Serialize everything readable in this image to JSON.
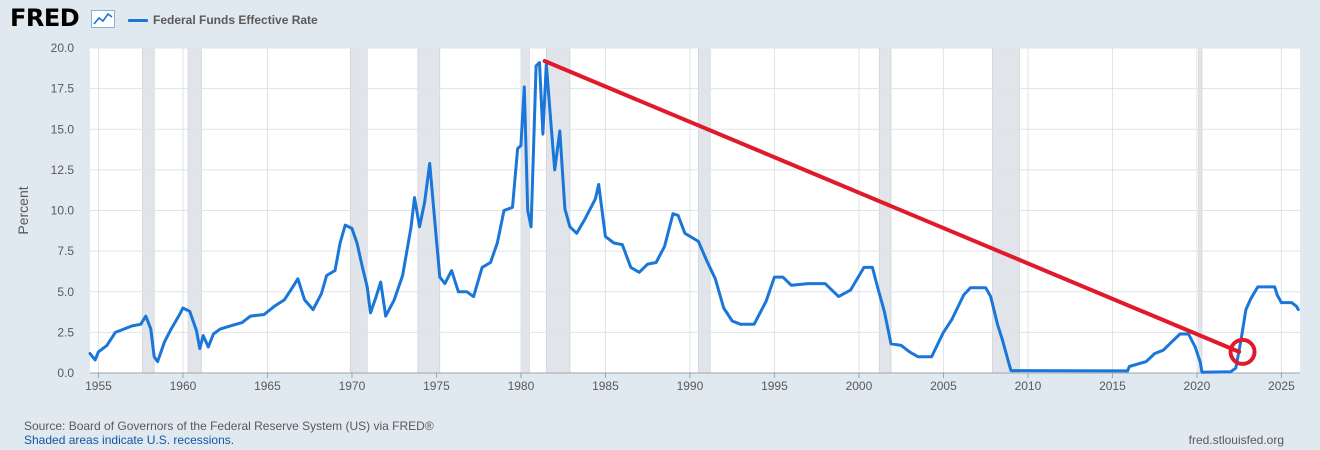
{
  "header": {
    "logo_text": "FRED",
    "logo_icon": "line-chart-icon",
    "legend_label": "Federal Funds Effective Rate"
  },
  "footer": {
    "source": "Source: Board of Governors of the Federal Reserve System (US) via FRED®",
    "recession_note": "Shaded areas indicate U.S. recessions.",
    "site": "fred.stlouisfed.org"
  },
  "colors": {
    "page_bg": "#e1e9f0",
    "plot_bg": "#ffffff",
    "series": "#1a76d8",
    "grid": "#dfe3e8",
    "recession": "#e1e5ea",
    "annotation": "#e01a2a",
    "axis_text": "#595959"
  },
  "chart_data": {
    "type": "line",
    "title": "",
    "xlabel": "",
    "ylabel": "Percent",
    "xlim": [
      1954.5,
      2026.1
    ],
    "ylim": [
      0,
      20
    ],
    "x_ticks": [
      1955,
      1960,
      1965,
      1970,
      1975,
      1980,
      1985,
      1990,
      1995,
      2000,
      2005,
      2010,
      2015,
      2020,
      2025
    ],
    "y_ticks": [
      "0.0",
      "2.5",
      "5.0",
      "7.5",
      "10.0",
      "12.5",
      "15.0",
      "17.5",
      "20.0"
    ],
    "grid": true,
    "legend_position": "top-left",
    "recessions": [
      [
        1957.6,
        1958.3
      ],
      [
        1960.3,
        1961.1
      ],
      [
        1969.9,
        1970.9
      ],
      [
        1973.9,
        1975.2
      ],
      [
        1980.0,
        1980.5
      ],
      [
        1981.5,
        1982.9
      ],
      [
        1990.5,
        1991.2
      ],
      [
        2001.2,
        2001.9
      ],
      [
        2007.9,
        2009.5
      ],
      [
        2020.1,
        2020.3
      ]
    ],
    "series": [
      {
        "name": "Federal Funds Effective Rate",
        "points": [
          [
            1954.5,
            1.2
          ],
          [
            1954.8,
            0.8
          ],
          [
            1955.0,
            1.3
          ],
          [
            1955.5,
            1.7
          ],
          [
            1956.0,
            2.5
          ],
          [
            1956.5,
            2.7
          ],
          [
            1957.0,
            2.9
          ],
          [
            1957.5,
            3.0
          ],
          [
            1957.8,
            3.5
          ],
          [
            1958.1,
            2.7
          ],
          [
            1958.3,
            1.0
          ],
          [
            1958.5,
            0.7
          ],
          [
            1958.9,
            1.9
          ],
          [
            1959.3,
            2.7
          ],
          [
            1959.8,
            3.6
          ],
          [
            1960.0,
            4.0
          ],
          [
            1960.4,
            3.8
          ],
          [
            1960.8,
            2.6
          ],
          [
            1961.0,
            1.5
          ],
          [
            1961.2,
            2.3
          ],
          [
            1961.5,
            1.6
          ],
          [
            1961.8,
            2.4
          ],
          [
            1962.2,
            2.7
          ],
          [
            1962.8,
            2.9
          ],
          [
            1963.5,
            3.1
          ],
          [
            1964.0,
            3.5
          ],
          [
            1964.8,
            3.6
          ],
          [
            1965.4,
            4.1
          ],
          [
            1966.0,
            4.5
          ],
          [
            1966.5,
            5.3
          ],
          [
            1966.8,
            5.8
          ],
          [
            1967.2,
            4.5
          ],
          [
            1967.7,
            3.9
          ],
          [
            1968.2,
            4.9
          ],
          [
            1968.5,
            6.0
          ],
          [
            1969.0,
            6.3
          ],
          [
            1969.3,
            8.0
          ],
          [
            1969.6,
            9.1
          ],
          [
            1970.0,
            8.9
          ],
          [
            1970.3,
            8.0
          ],
          [
            1970.6,
            6.6
          ],
          [
            1970.9,
            5.3
          ],
          [
            1971.1,
            3.7
          ],
          [
            1971.4,
            4.6
          ],
          [
            1971.7,
            5.6
          ],
          [
            1972.0,
            3.5
          ],
          [
            1972.5,
            4.5
          ],
          [
            1973.0,
            6.0
          ],
          [
            1973.5,
            9.0
          ],
          [
            1973.7,
            10.8
          ],
          [
            1974.0,
            9.0
          ],
          [
            1974.3,
            10.5
          ],
          [
            1974.6,
            12.9
          ],
          [
            1974.9,
            9.4
          ],
          [
            1975.2,
            5.9
          ],
          [
            1975.5,
            5.5
          ],
          [
            1975.9,
            6.3
          ],
          [
            1976.3,
            5.0
          ],
          [
            1976.8,
            5.0
          ],
          [
            1977.2,
            4.7
          ],
          [
            1977.7,
            6.5
          ],
          [
            1978.2,
            6.8
          ],
          [
            1978.6,
            8.0
          ],
          [
            1979.0,
            10.0
          ],
          [
            1979.5,
            10.2
          ],
          [
            1979.8,
            13.8
          ],
          [
            1980.0,
            14.0
          ],
          [
            1980.2,
            17.6
          ],
          [
            1980.4,
            10.0
          ],
          [
            1980.6,
            9.0
          ],
          [
            1980.9,
            18.9
          ],
          [
            1981.1,
            19.1
          ],
          [
            1981.3,
            14.7
          ],
          [
            1981.5,
            19.0
          ],
          [
            1981.8,
            15.0
          ],
          [
            1982.0,
            12.5
          ],
          [
            1982.3,
            14.9
          ],
          [
            1982.6,
            10.1
          ],
          [
            1982.9,
            9.0
          ],
          [
            1983.3,
            8.6
          ],
          [
            1983.8,
            9.5
          ],
          [
            1984.4,
            10.7
          ],
          [
            1984.6,
            11.6
          ],
          [
            1985.0,
            8.4
          ],
          [
            1985.5,
            8.0
          ],
          [
            1986.0,
            7.9
          ],
          [
            1986.5,
            6.5
          ],
          [
            1987.0,
            6.2
          ],
          [
            1987.5,
            6.7
          ],
          [
            1988.0,
            6.8
          ],
          [
            1988.5,
            7.8
          ],
          [
            1989.0,
            9.8
          ],
          [
            1989.3,
            9.7
          ],
          [
            1989.7,
            8.6
          ],
          [
            1990.5,
            8.1
          ],
          [
            1991.0,
            6.9
          ],
          [
            1991.5,
            5.8
          ],
          [
            1992.0,
            4.0
          ],
          [
            1992.5,
            3.2
          ],
          [
            1993.0,
            3.0
          ],
          [
            1993.8,
            3.0
          ],
          [
            1994.5,
            4.4
          ],
          [
            1995.0,
            5.9
          ],
          [
            1995.5,
            5.9
          ],
          [
            1996.0,
            5.4
          ],
          [
            1997.0,
            5.5
          ],
          [
            1998.0,
            5.5
          ],
          [
            1998.8,
            4.7
          ],
          [
            1999.5,
            5.1
          ],
          [
            2000.3,
            6.5
          ],
          [
            2000.8,
            6.5
          ],
          [
            2001.1,
            5.3
          ],
          [
            2001.5,
            3.8
          ],
          [
            2001.9,
            1.8
          ],
          [
            2002.5,
            1.7
          ],
          [
            2003.0,
            1.3
          ],
          [
            2003.5,
            1.0
          ],
          [
            2004.3,
            1.0
          ],
          [
            2005.0,
            2.5
          ],
          [
            2005.5,
            3.3
          ],
          [
            2006.2,
            4.8
          ],
          [
            2006.6,
            5.25
          ],
          [
            2007.5,
            5.25
          ],
          [
            2007.8,
            4.7
          ],
          [
            2008.2,
            3.0
          ],
          [
            2008.5,
            2.0
          ],
          [
            2008.9,
            0.5
          ],
          [
            2009.0,
            0.15
          ],
          [
            2012.0,
            0.14
          ],
          [
            2015.9,
            0.13
          ],
          [
            2016.0,
            0.4
          ],
          [
            2017.0,
            0.7
          ],
          [
            2017.5,
            1.2
          ],
          [
            2018.0,
            1.4
          ],
          [
            2018.5,
            1.9
          ],
          [
            2019.0,
            2.4
          ],
          [
            2019.5,
            2.4
          ],
          [
            2019.9,
            1.6
          ],
          [
            2020.2,
            0.65
          ],
          [
            2020.3,
            0.05
          ],
          [
            2022.0,
            0.08
          ],
          [
            2022.3,
            0.3
          ],
          [
            2022.6,
            2.0
          ],
          [
            2022.9,
            3.9
          ],
          [
            2023.2,
            4.6
          ],
          [
            2023.6,
            5.3
          ],
          [
            2024.6,
            5.3
          ],
          [
            2024.75,
            4.8
          ],
          [
            2025.0,
            4.33
          ],
          [
            2025.6,
            4.33
          ],
          [
            2025.9,
            4.1
          ],
          [
            2026.0,
            3.9
          ]
        ]
      }
    ],
    "annotations": [
      {
        "type": "line",
        "from": [
          1981.4,
          19.2
        ],
        "to": [
          2022.5,
          1.3
        ]
      },
      {
        "type": "circle",
        "center": [
          2022.7,
          1.3
        ]
      }
    ]
  }
}
